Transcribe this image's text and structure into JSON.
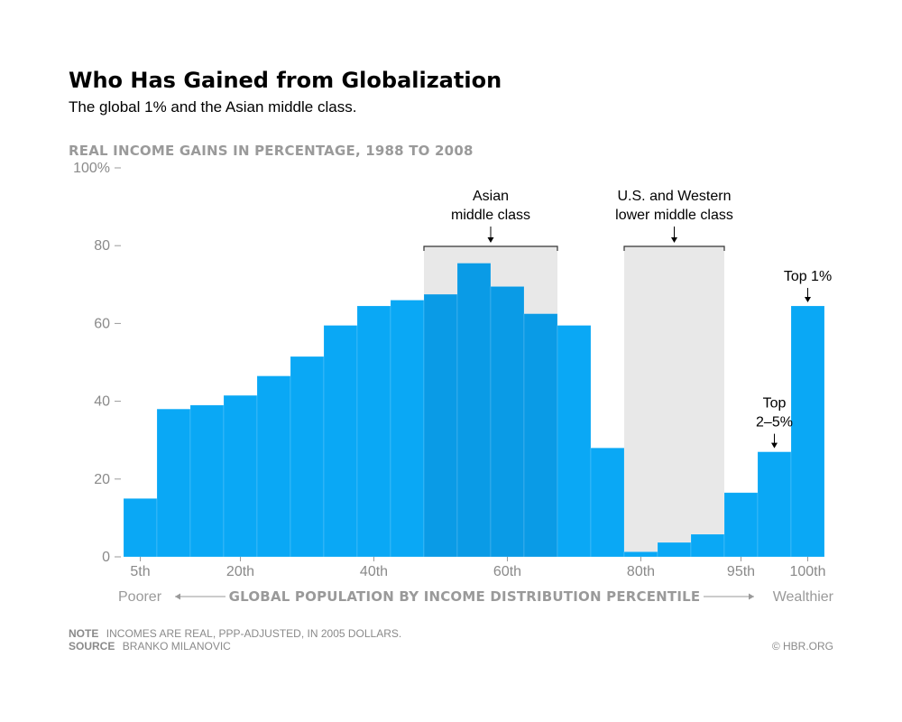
{
  "title": "Who Has Gained from Globalization",
  "subtitle": "The global 1% and the Asian middle class.",
  "note_label": "NOTE",
  "note_text": "INCOMES ARE REAL, PPP-ADJUSTED, IN 2005 DOLLARS.",
  "source_label": "SOURCE",
  "source_text": "BRANKO MILANOVIC",
  "credit": "© HBR.ORG",
  "colors": {
    "bar": "#0aa8f5",
    "bar_highlight": "#0a9be6",
    "shade": "#e8e8e8",
    "axis_text": "#8a8a8a"
  },
  "chart_data": {
    "type": "bar",
    "ylabel": "REAL INCOME GAINS IN PERCENTAGE, 1988 TO 2008",
    "xlabel": "GLOBAL POPULATION BY INCOME DISTRIBUTION PERCENTILE",
    "x_left_label": "Poorer",
    "x_right_label": "Wealthier",
    "ylim": [
      0,
      100
    ],
    "yticks": [
      "0",
      "20",
      "40",
      "60",
      "80",
      "100%"
    ],
    "percentiles": [
      5,
      10,
      15,
      20,
      25,
      30,
      35,
      40,
      45,
      50,
      55,
      60,
      65,
      70,
      75,
      80,
      85,
      90,
      95,
      99,
      100
    ],
    "values": [
      15,
      38,
      39,
      41.5,
      46.5,
      51.5,
      59.5,
      64.5,
      66,
      67.5,
      75.5,
      69.5,
      62.5,
      59.5,
      28,
      1.3,
      3.7,
      5.8,
      16.5,
      27,
      64.5
    ],
    "xticks": [
      {
        "label": "5th",
        "at": 5
      },
      {
        "label": "20th",
        "at": 20
      },
      {
        "label": "40th",
        "at": 40
      },
      {
        "label": "60th",
        "at": 60
      },
      {
        "label": "80th",
        "at": 80
      },
      {
        "label": "95th",
        "at": 95
      },
      {
        "label": "100th",
        "at": 100
      }
    ],
    "highlighted_percentiles": [
      50,
      55,
      60,
      65
    ],
    "regions": [
      {
        "name": "Asian middle class",
        "lines": [
          "Asian",
          "middle class"
        ],
        "from": 50,
        "to": 65
      },
      {
        "name": "U.S. and Western lower middle class",
        "lines": [
          "U.S. and Western",
          "lower middle class"
        ],
        "from": 80,
        "to": 90
      }
    ],
    "annotations": [
      {
        "lines": [
          "Top",
          "2–5%"
        ],
        "at": 99
      },
      {
        "lines": [
          "Top 1%"
        ],
        "at": 100
      }
    ]
  }
}
